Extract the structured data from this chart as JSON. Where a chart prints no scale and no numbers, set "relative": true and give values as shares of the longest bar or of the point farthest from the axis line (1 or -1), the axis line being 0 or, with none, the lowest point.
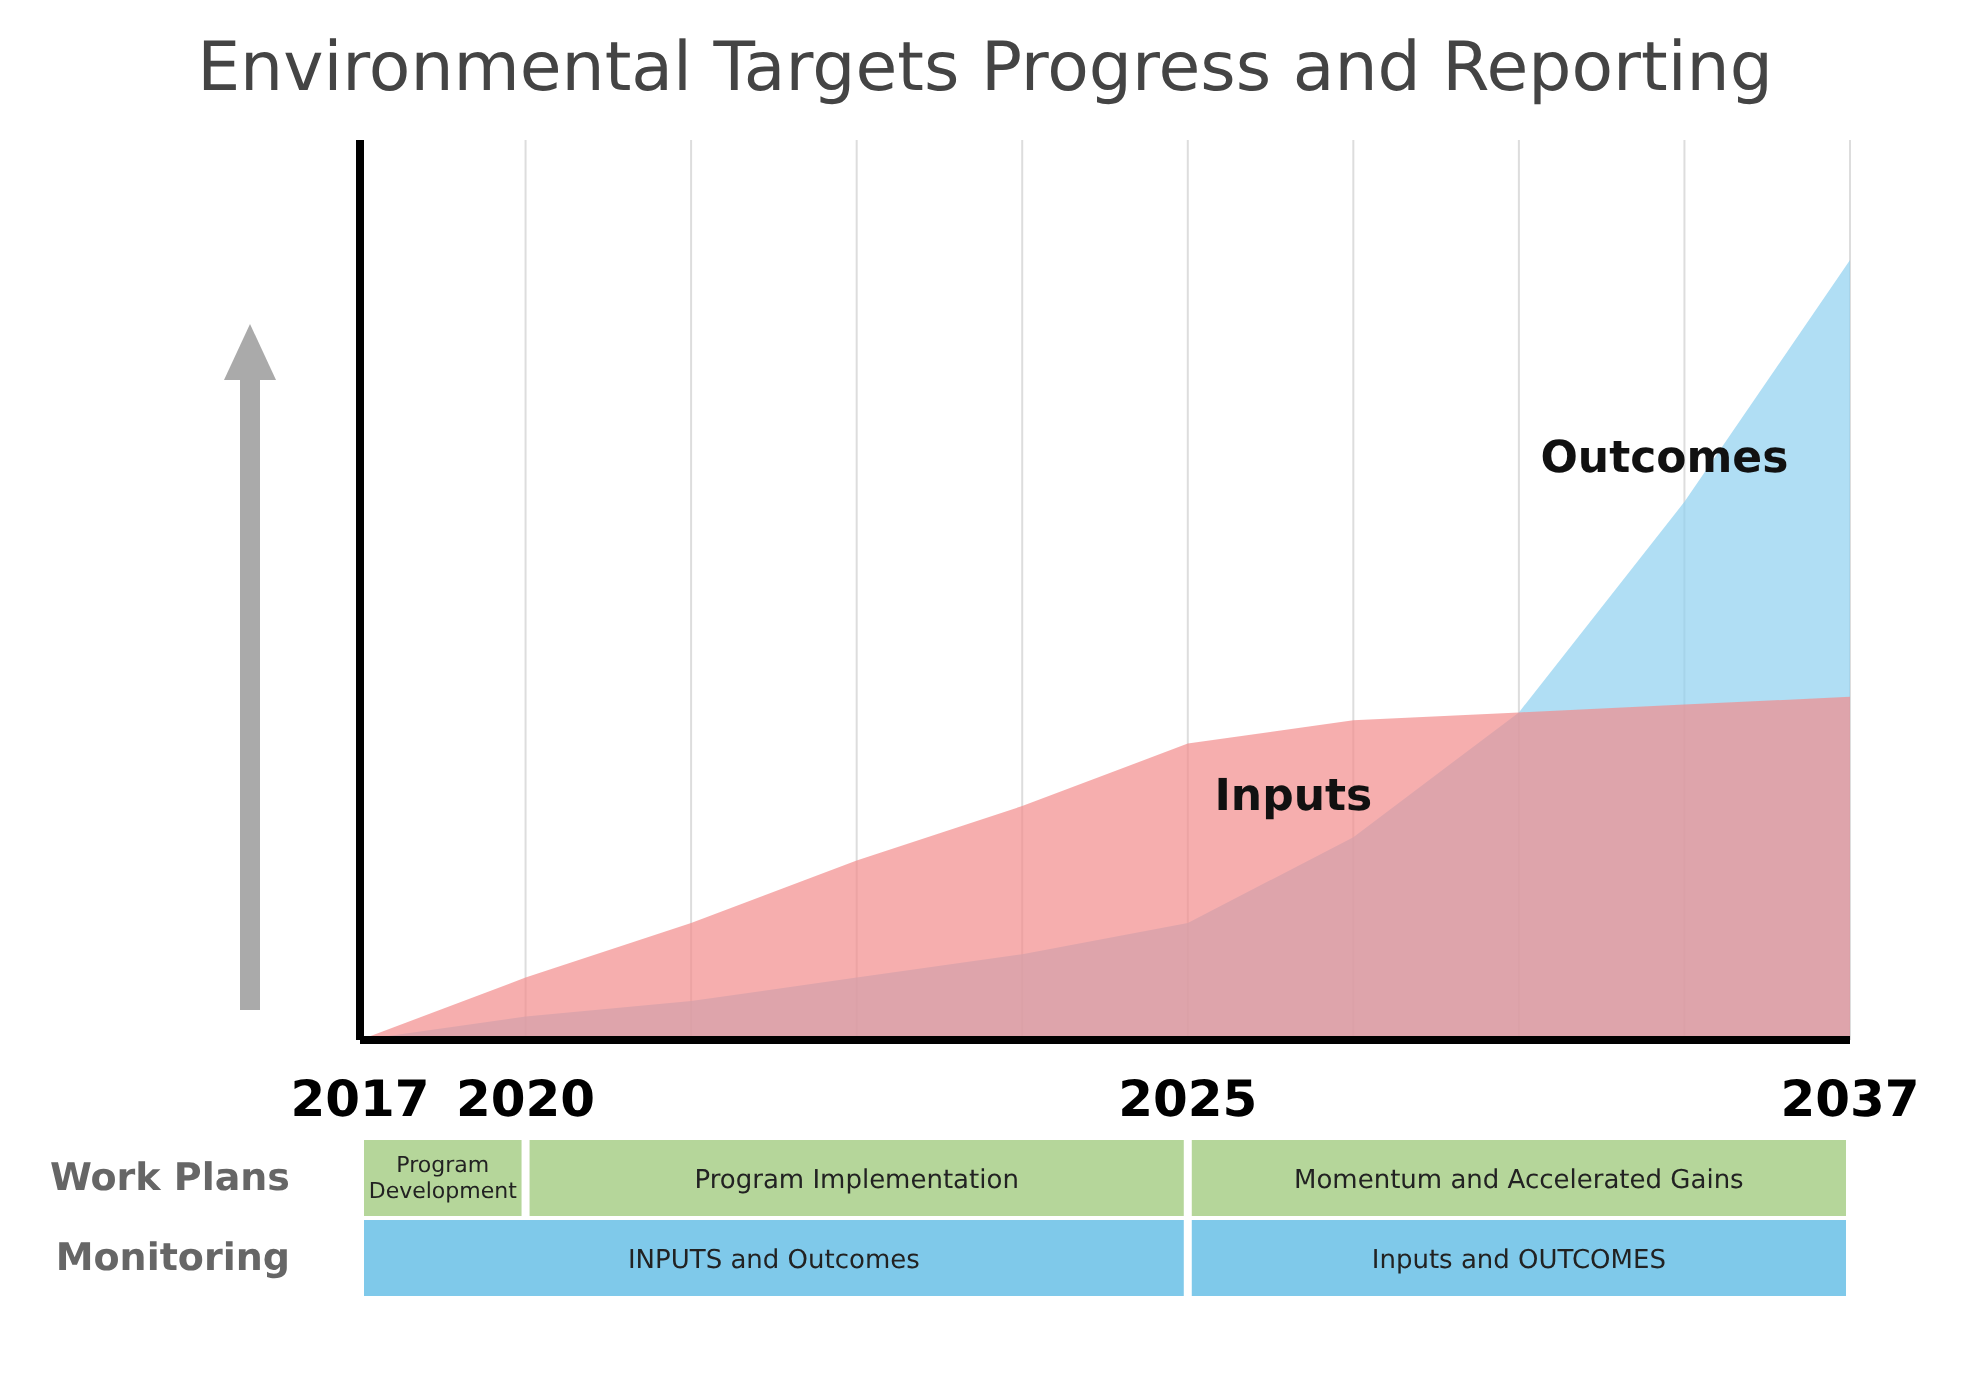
{
  "chart_data": {
    "type": "area",
    "title": "Environmental Targets Progress and Reporting",
    "relative": true,
    "grid": "x",
    "categories": [
      "2017",
      "2020",
      null,
      null,
      null,
      "2025",
      null,
      null,
      null,
      "2037"
    ],
    "series": [
      {
        "name": "Inputs",
        "color": "#f28b8b",
        "values": [
          0,
          0.08,
          0.15,
          0.23,
          0.3,
          0.38,
          0.41,
          0.42,
          0.43,
          0.44
        ]
      },
      {
        "name": "Outcomes",
        "color": "#8fd0ef",
        "values": [
          0,
          0.03,
          0.05,
          0.08,
          0.11,
          0.15,
          0.26,
          0.42,
          0.69,
          1.0
        ]
      }
    ],
    "annotations": [
      "Work Plans",
      "Program Development",
      "Program Implementation",
      "Momentum and Accelerated Gains",
      "Monitoring",
      "INPUTS and Outcomes",
      "Inputs and OUTCOMES"
    ]
  }
}
